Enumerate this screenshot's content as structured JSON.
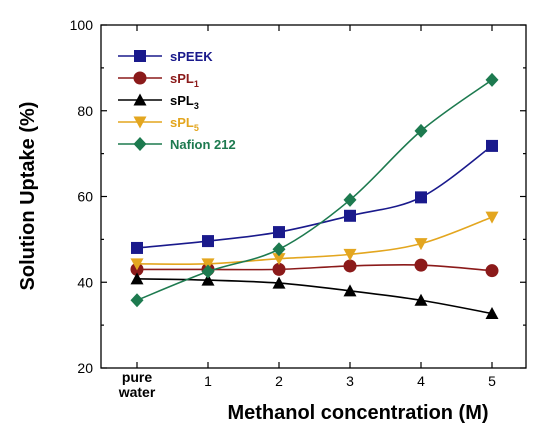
{
  "chart_data": {
    "type": "line",
    "xlabel": "Methanol concentration (M)",
    "ylabel": "Solution Uptake (%)",
    "ylim": [
      20,
      100
    ],
    "yticks": [
      20,
      40,
      60,
      80,
      100
    ],
    "categories": [
      "pure water",
      "1",
      "2",
      "3",
      "4",
      "5"
    ],
    "category_label_lines": [
      [
        "pure",
        "water"
      ],
      [
        "1"
      ],
      [
        "2"
      ],
      [
        "3"
      ],
      [
        "4"
      ],
      [
        "5"
      ]
    ],
    "legend_position": "top-left",
    "grid": false,
    "series": [
      {
        "name": "sPEEK",
        "label_main": "sPEEK",
        "label_sub": "",
        "color": "#1a1a8c",
        "marker": "square",
        "values": [
          48.0,
          49.6,
          51.7,
          55.5,
          59.8,
          71.8
        ]
      },
      {
        "name": "sPL1",
        "label_main": "sPL",
        "label_sub": "1",
        "color": "#8b1a1a",
        "marker": "circle",
        "values": [
          43.0,
          43.0,
          43.0,
          43.8,
          44.0,
          42.7
        ]
      },
      {
        "name": "sPL3",
        "label_main": "sPL",
        "label_sub": "3",
        "color": "#000000",
        "marker": "triangle-up",
        "values": [
          40.8,
          40.5,
          39.8,
          38.0,
          35.8,
          32.7
        ]
      },
      {
        "name": "sPL5",
        "label_main": "sPL",
        "label_sub": "5",
        "color": "#e3a61f",
        "marker": "triangle-down",
        "values": [
          44.3,
          44.3,
          45.5,
          46.5,
          49.0,
          55.2
        ]
      },
      {
        "name": "Nafion 212",
        "label_main": "Nafion 212",
        "label_sub": "",
        "color": "#1d7a4f",
        "marker": "diamond",
        "values": [
          35.8,
          42.5,
          47.7,
          59.2,
          75.3,
          87.2
        ]
      }
    ]
  }
}
